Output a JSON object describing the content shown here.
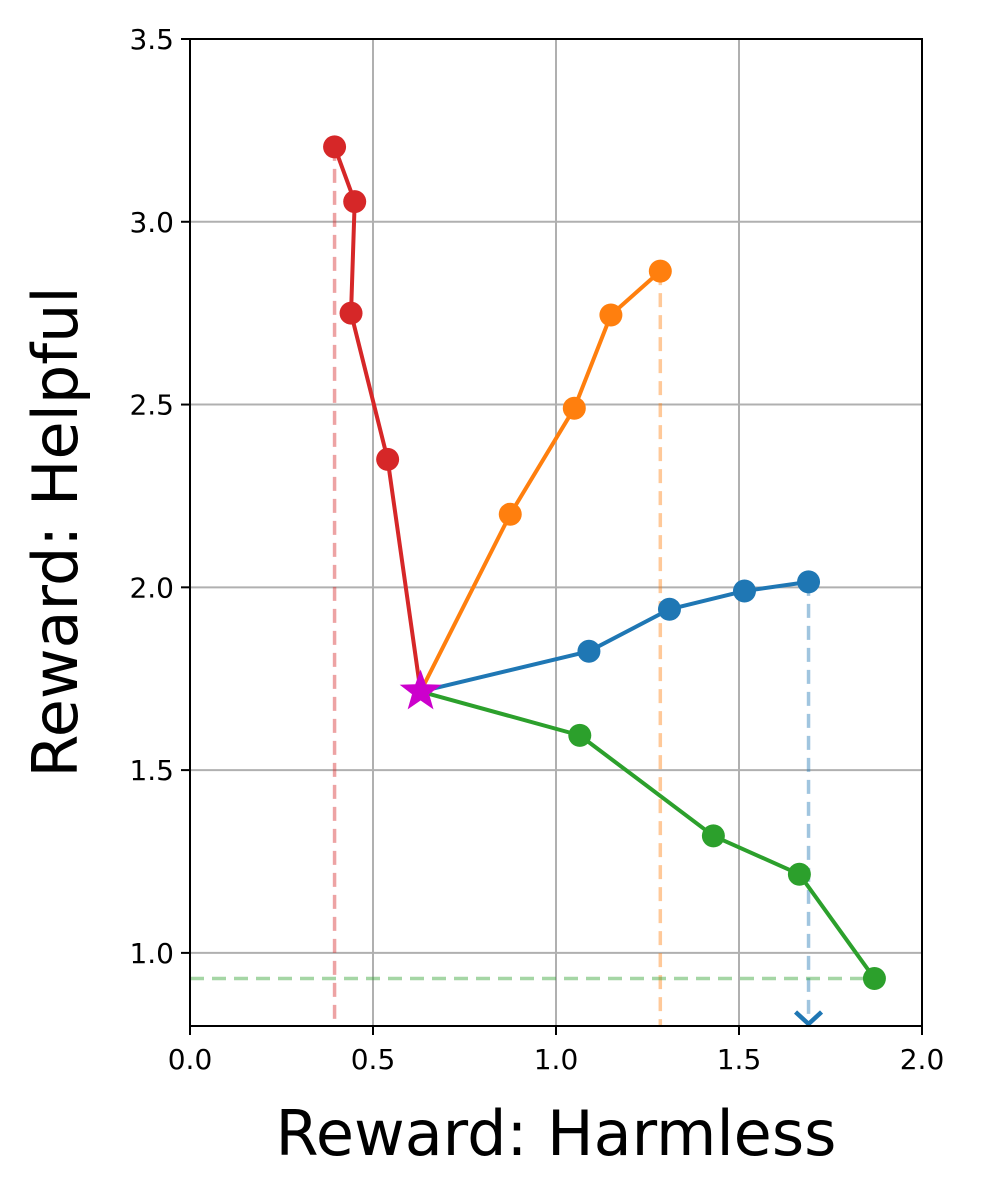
{
  "chart_data": {
    "type": "line",
    "xlabel": "Reward: Harmless",
    "ylabel": "Reward: Helpful",
    "xlim": [
      0.0,
      2.0
    ],
    "ylim": [
      0.8,
      3.5
    ],
    "xticks": [
      "0.0",
      "0.5",
      "1.0",
      "1.5",
      "2.0"
    ],
    "yticks": [
      "1.0",
      "1.5",
      "2.0",
      "2.5",
      "3.0",
      "3.5"
    ],
    "grid": true,
    "origin": {
      "x": 0.63,
      "y": 1.715,
      "color": "#cc00cc",
      "marker": "star"
    },
    "series": [
      {
        "color": "#d62728",
        "x": [
          0.63,
          0.54,
          0.44,
          0.45,
          0.395
        ],
        "y": [
          1.715,
          2.35,
          2.75,
          3.055,
          3.205
        ],
        "guide": {
          "orientation": "vertical",
          "value": 0.395
        }
      },
      {
        "color": "#ff7f0e",
        "x": [
          0.63,
          0.875,
          1.05,
          1.15,
          1.285
        ],
        "y": [
          1.715,
          2.2,
          2.49,
          2.745,
          2.865
        ],
        "guide": {
          "orientation": "vertical",
          "value": 1.285
        }
      },
      {
        "color": "#1f77b4",
        "x": [
          0.63,
          1.09,
          1.31,
          1.515,
          1.69
        ],
        "y": [
          1.715,
          1.825,
          1.94,
          1.99,
          2.015
        ],
        "guide": {
          "orientation": "vertical",
          "value": 1.69,
          "arrow": true
        }
      },
      {
        "color": "#2ca02c",
        "x": [
          0.63,
          1.065,
          1.43,
          1.665,
          1.87
        ],
        "y": [
          1.715,
          1.595,
          1.32,
          1.215,
          0.93
        ],
        "guide": {
          "orientation": "horizontal",
          "value": 0.93
        }
      }
    ]
  }
}
